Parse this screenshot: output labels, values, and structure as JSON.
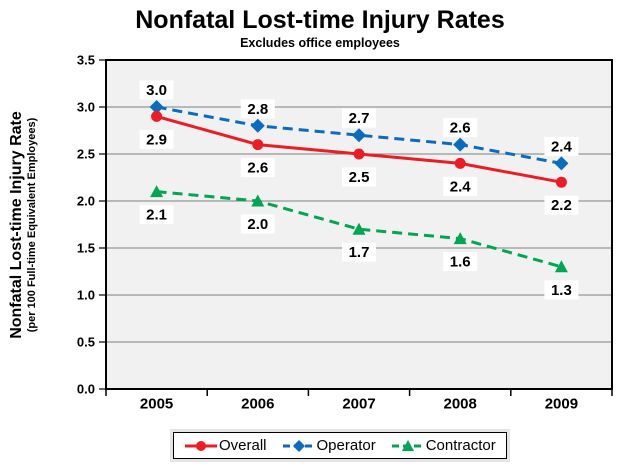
{
  "title": "Nonfatal Lost-time Injury Rates",
  "subtitle": "Excludes office employees",
  "y_axis": {
    "label_line1": "Nonfatal Lost-time Injury Rate",
    "label_line2": "(per 100 Full-time Equivalent Employees)"
  },
  "chart_data": {
    "type": "line",
    "title": "Nonfatal Lost-time Injury Rates",
    "subtitle": "Excludes office employees",
    "categories": [
      "2005",
      "2006",
      "2007",
      "2008",
      "2009"
    ],
    "series": [
      {
        "name": "Overall",
        "values": [
          2.9,
          2.6,
          2.5,
          2.4,
          2.2
        ],
        "color": "#EC1C24",
        "marker": "circle",
        "line_style": "solid",
        "label_position": "below"
      },
      {
        "name": "Operator",
        "values": [
          3.0,
          2.8,
          2.7,
          2.6,
          2.4
        ],
        "color": "#0B6BBF",
        "marker": "diamond",
        "line_style": "dashed",
        "label_position": "above"
      },
      {
        "name": "Contractor",
        "values": [
          2.1,
          2.0,
          1.7,
          1.6,
          1.3
        ],
        "color": "#00A651",
        "marker": "triangle",
        "line_style": "dashed",
        "label_position": "below"
      }
    ],
    "xlabel": "",
    "ylabel": "Nonfatal Lost-time Injury Rate (per 100 Full-time Equivalent Employees)",
    "ylim": [
      0,
      3.5
    ],
    "ytick_step": 0.5,
    "yticks": [
      "0.0",
      "0.5",
      "1.0",
      "1.5",
      "2.0",
      "2.5",
      "3.0",
      "3.5"
    ],
    "grid": true,
    "legend_position": "bottom",
    "colors": {
      "plot_bg": "#F1F1F1",
      "grid": "#7F7F7F",
      "axis": "#000000",
      "label_bg": "#FFFFFF"
    }
  }
}
